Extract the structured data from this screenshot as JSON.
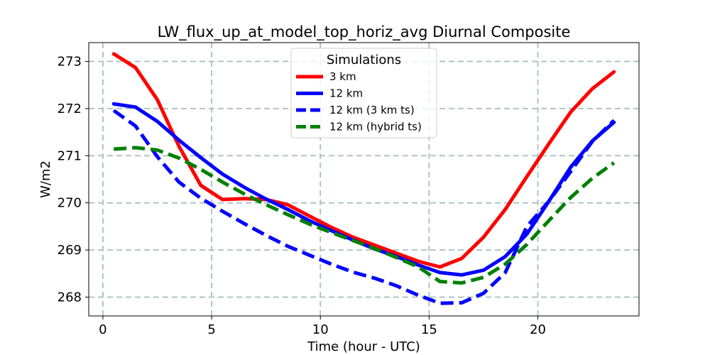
{
  "chart_data": {
    "type": "line",
    "title": "LW_flux_up_at_model_top_horiz_avg Diurnal Composite",
    "xlabel": "Time (hour - UTC)",
    "ylabel": "W/m2",
    "xlim": [
      -0.65,
      24.65
    ],
    "ylim": [
      267.6,
      273.4
    ],
    "xticks": [
      0,
      5,
      10,
      15,
      20
    ],
    "yticks": [
      268,
      269,
      270,
      271,
      272,
      273
    ],
    "grid": true,
    "legend": {
      "title": "Simulations",
      "placement": "top-center"
    },
    "x": [
      0.5,
      1.5,
      2.5,
      3.5,
      4.5,
      5.5,
      6.5,
      7.5,
      8.5,
      9.5,
      10.5,
      11.5,
      12.5,
      13.5,
      14.5,
      15.5,
      16.5,
      17.5,
      18.5,
      19.5,
      20.5,
      21.5,
      22.5,
      23.5
    ],
    "series": [
      {
        "name": "3 km",
        "color": "#ff0000",
        "dash": "solid",
        "values": [
          273.16,
          272.87,
          272.19,
          271.2,
          270.37,
          270.07,
          270.09,
          270.07,
          269.96,
          269.72,
          269.48,
          269.27,
          269.1,
          268.93,
          268.76,
          268.64,
          268.82,
          269.27,
          269.86,
          270.56,
          271.25,
          271.92,
          272.42,
          272.78
        ]
      },
      {
        "name": "12 km",
        "color": "#0000ff",
        "dash": "solid",
        "values": [
          272.1,
          272.03,
          271.73,
          271.33,
          270.96,
          270.61,
          270.33,
          270.08,
          269.86,
          269.62,
          269.41,
          269.21,
          269.02,
          268.86,
          268.68,
          268.52,
          268.47,
          268.57,
          268.86,
          269.34,
          270.03,
          270.75,
          271.31,
          271.71
        ]
      },
      {
        "name": "12 km (3 km ts)",
        "color": "#0000ff",
        "dash": "dashed",
        "values": [
          271.96,
          271.63,
          270.98,
          270.44,
          270.1,
          269.82,
          269.56,
          269.31,
          269.08,
          268.89,
          268.7,
          268.53,
          268.4,
          268.24,
          268.04,
          267.87,
          267.88,
          268.08,
          268.52,
          269.5,
          270.03,
          270.66,
          271.3,
          271.75
        ]
      },
      {
        "name": "12 km (hybrid ts)",
        "color": "#008000",
        "dash": "dashed",
        "values": [
          271.14,
          271.17,
          271.12,
          270.95,
          270.71,
          270.44,
          270.19,
          269.96,
          269.75,
          269.55,
          269.37,
          269.2,
          269.03,
          268.84,
          268.64,
          268.33,
          268.3,
          268.42,
          268.7,
          269.12,
          269.62,
          270.11,
          270.52,
          270.85
        ]
      }
    ]
  }
}
